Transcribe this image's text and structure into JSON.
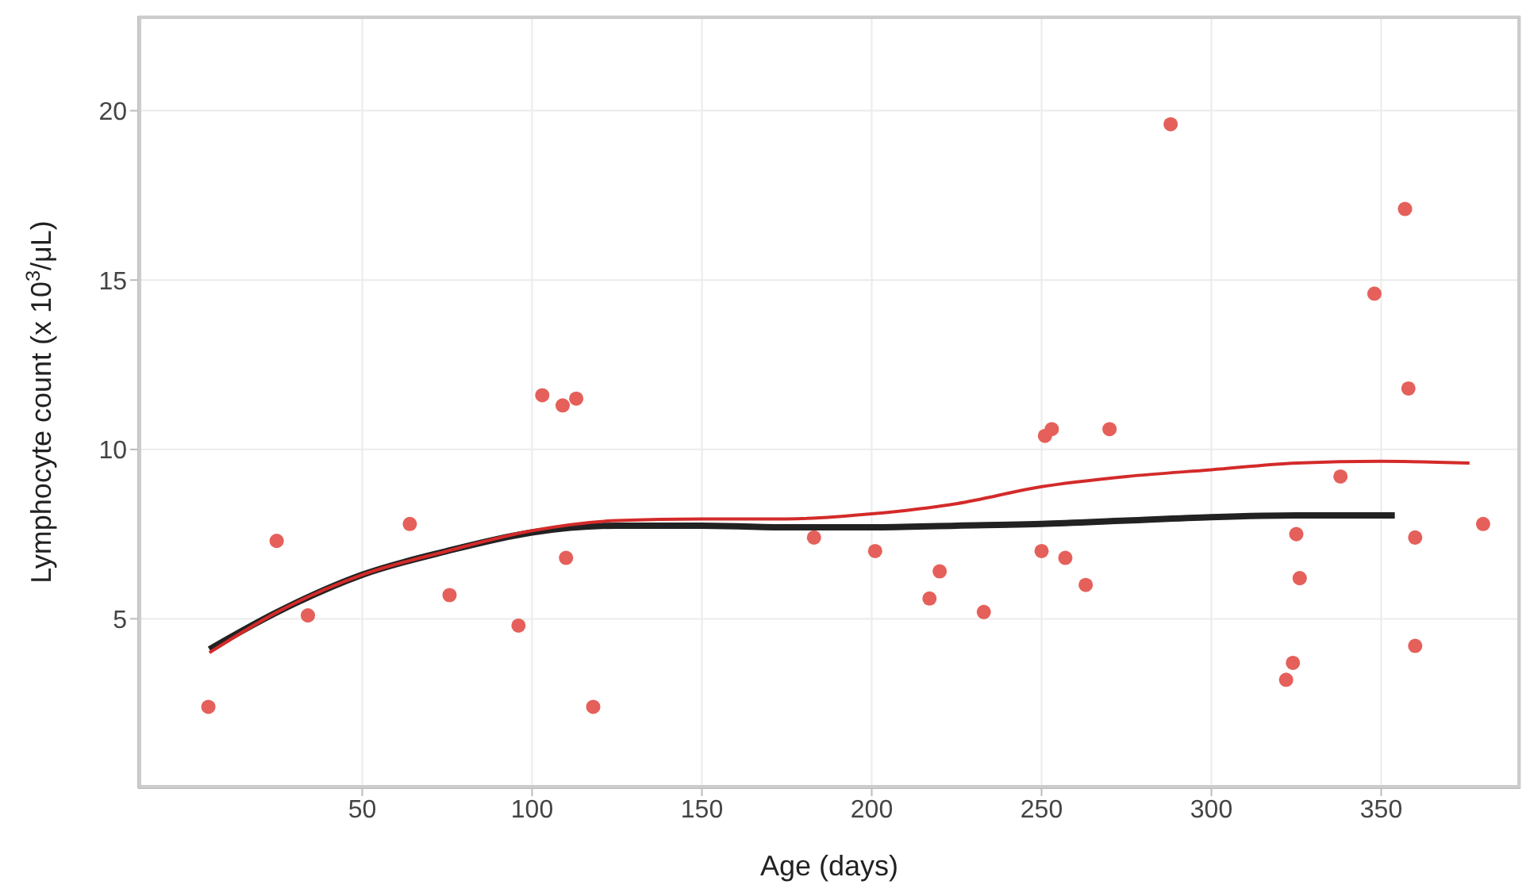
{
  "chart_data": {
    "type": "line",
    "xlabel": "Age (days)",
    "ylabel": "Lymphocyte count (x 10$^{3}$/μL)",
    "xlim": [
      -16,
      391
    ],
    "xticks": [
      50,
      100,
      150,
      200,
      250,
      300,
      350
    ],
    "ylim": [
      0,
      22.8
    ],
    "yticks": [
      5,
      10,
      15,
      20
    ],
    "grid": true,
    "series": [
      {
        "type": "scatter",
        "marker": "circle",
        "color": "#e5605a",
        "x": [
          4.7,
          24.8,
          34,
          64,
          75.7,
          96,
          103,
          109,
          113,
          110,
          118,
          183,
          201,
          220,
          217,
          233,
          250,
          257,
          263,
          251,
          253,
          270,
          288,
          338,
          348,
          357,
          358,
          360,
          360,
          325,
          326,
          324,
          322,
          380
        ],
        "values": [
          2.4,
          7.3,
          5.1,
          7.8,
          5.7,
          4.8,
          11.6,
          11.3,
          11.5,
          6.8,
          2.4,
          7.4,
          7.0,
          6.4,
          5.6,
          5.2,
          7.0,
          6.8,
          6.0,
          10.4,
          10.6,
          10.6,
          19.6,
          9.2,
          14.6,
          17.1,
          11.8,
          7.4,
          4.2,
          7.5,
          6.2,
          3.7,
          3.2,
          7.8
        ]
      },
      {
        "color": "#222222",
        "x": [
          5,
          25,
          50,
          75,
          100,
          125,
          150,
          175,
          200,
          225,
          250,
          275,
          300,
          325,
          354
        ],
        "values": [
          4.1,
          5.2,
          6.3,
          7.0,
          7.55,
          7.75,
          7.75,
          7.7,
          7.7,
          7.75,
          7.8,
          7.9,
          8.0,
          8.05,
          8.05
        ]
      },
      {
        "color": "#d42a2a",
        "x": [
          5,
          25,
          50,
          75,
          100,
          125,
          150,
          175,
          200,
          225,
          250,
          275,
          300,
          325,
          350,
          376
        ],
        "values": [
          4.0,
          5.2,
          6.3,
          7.0,
          7.6,
          7.9,
          7.95,
          7.95,
          8.1,
          8.4,
          8.9,
          9.2,
          9.4,
          9.6,
          9.65,
          9.6
        ]
      }
    ]
  }
}
